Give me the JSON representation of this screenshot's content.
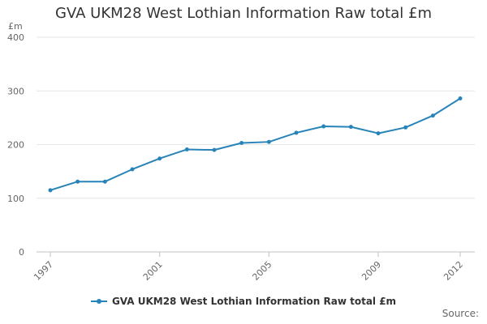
{
  "chart_data": {
    "type": "line",
    "title": "GVA UKM28 West Lothian Information Raw total £m",
    "ylabel": "£m",
    "xlabel": "",
    "x": [
      1997,
      1998,
      1999,
      2000,
      2001,
      2002,
      2003,
      2004,
      2005,
      2006,
      2007,
      2008,
      2009,
      2010,
      2011,
      2012
    ],
    "x_tick_labels": [
      "1997",
      "2001",
      "2005",
      "2009",
      "2012"
    ],
    "y_tick_labels": [
      "0",
      "100",
      "200",
      "300",
      "400"
    ],
    "ylim": [
      0,
      400
    ],
    "grid": true,
    "legend_position": "bottom",
    "series": [
      {
        "name": "GVA UKM28 West Lothian Information Raw total £m",
        "values": [
          115,
          131,
          131,
          154,
          174,
          191,
          190,
          203,
          205,
          222,
          234,
          233,
          221,
          232,
          254,
          286
        ],
        "color": "#2884b8"
      }
    ]
  },
  "footer": {
    "source_label": "Source:"
  },
  "colors": {
    "grid": "#e6e6e6",
    "axis": "#c0c0c0",
    "tick_text": "#666666"
  }
}
